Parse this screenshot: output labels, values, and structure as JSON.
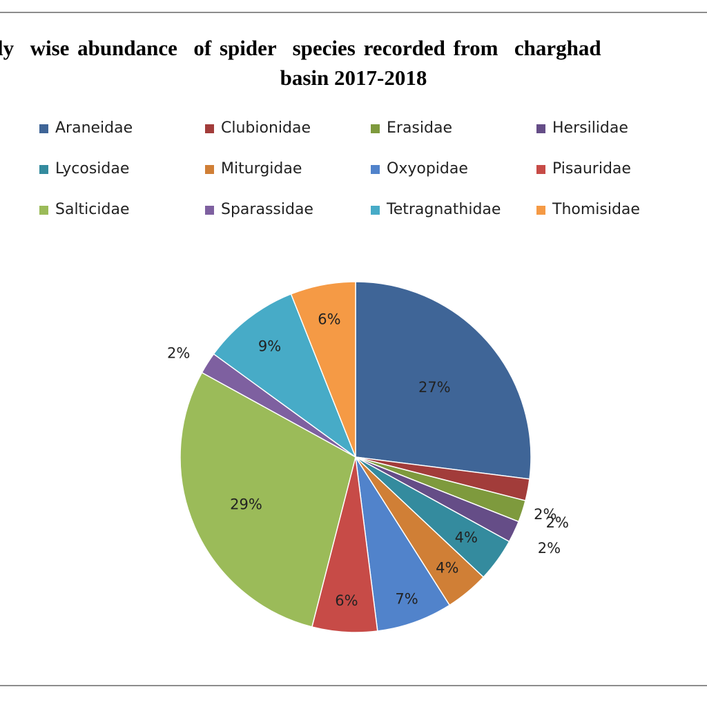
{
  "chart_data": {
    "type": "pie",
    "title_line1": "ly  wise abundance  of spider  species recorded from  charghad",
    "title_line2": "basin 2017-2018",
    "legend_position": "top",
    "start_angle_deg": 0,
    "direction": "clockwise",
    "slices": [
      {
        "name": "Araneidae",
        "value": 27,
        "label": "27%",
        "color": "#3F6597"
      },
      {
        "name": "Clubionidae",
        "value": 2,
        "label": "2%",
        "color": "#A23C3A"
      },
      {
        "name": "Erasidae",
        "value": 2,
        "label": "2%",
        "color": "#7E9A3D"
      },
      {
        "name": "Hersilidae",
        "value": 2,
        "label": "2%",
        "color": "#654D87"
      },
      {
        "name": "Lycosidae",
        "value": 4,
        "label": "4%",
        "color": "#348B9E"
      },
      {
        "name": "Miturgidae",
        "value": 4,
        "label": "4%",
        "color": "#D07F36"
      },
      {
        "name": "Oxyopidae",
        "value": 7,
        "label": "7%",
        "color": "#5183CB"
      },
      {
        "name": "Pisauridae",
        "value": 6,
        "label": "6%",
        "color": "#C74B47"
      },
      {
        "name": "Salticidae",
        "value": 29,
        "label": "29%",
        "color": "#9BBB59"
      },
      {
        "name": "Sparassidae",
        "value": 2,
        "label": "2%",
        "color": "#7E60A0"
      },
      {
        "name": "Tetragnathidae",
        "value": 9,
        "label": "9%",
        "color": "#47ABC7"
      },
      {
        "name": "Thomisidae",
        "value": 6,
        "label": "6%",
        "color": "#F59A45"
      }
    ]
  }
}
